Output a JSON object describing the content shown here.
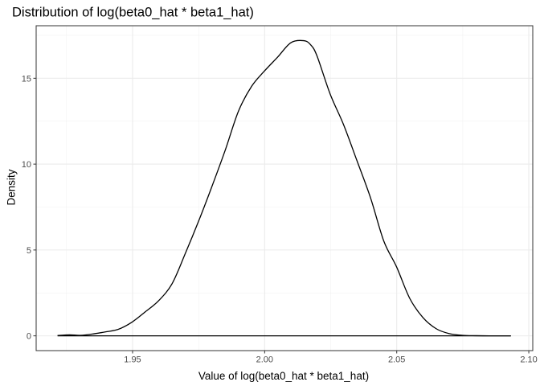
{
  "chart_data": {
    "type": "area",
    "title": "Distribution of log(beta0_hat * beta1_hat)",
    "xlabel": "Value of log(beta0_hat * beta1_hat)",
    "ylabel": "Density",
    "xlim": [
      1.9135,
      2.1015
    ],
    "ylim": [
      -0.86,
      18.06
    ],
    "x_ticks": [
      1.95,
      2.0,
      2.05,
      2.1
    ],
    "x_tick_labels": [
      "1.95",
      "2.00",
      "2.05",
      "2.10"
    ],
    "y_ticks": [
      0,
      5,
      10,
      15
    ],
    "y_tick_labels": [
      "0",
      "5",
      "10",
      "15"
    ],
    "grid": true,
    "theme": "bw",
    "line_color": "#000000",
    "series": [
      {
        "x": [
          1.9216,
          1.9262,
          1.9302,
          1.9354,
          1.9401,
          1.9446,
          1.9498,
          1.9549,
          1.9599,
          1.965,
          1.97,
          1.9751,
          1.9797,
          1.985,
          1.9901,
          1.9951,
          1.9999,
          2.0049,
          2.0099,
          2.0148,
          2.0174,
          2.0198,
          2.0248,
          2.0299,
          2.0349,
          2.0401,
          2.0451,
          2.0499,
          2.0549,
          2.0599,
          2.065,
          2.0699,
          2.0749,
          2.08,
          2.085,
          2.0932
        ],
        "y": [
          0.02,
          0.06,
          0.03,
          0.12,
          0.24,
          0.38,
          0.8,
          1.41,
          2.05,
          3.05,
          4.81,
          6.72,
          8.56,
          10.78,
          13.09,
          14.54,
          15.42,
          16.23,
          17.07,
          17.19,
          16.95,
          16.31,
          14.08,
          12.29,
          10.22,
          8.03,
          5.52,
          4.03,
          2.19,
          1.07,
          0.41,
          0.13,
          0.03,
          0.01,
          0.0,
          0.0
        ]
      }
    ]
  }
}
